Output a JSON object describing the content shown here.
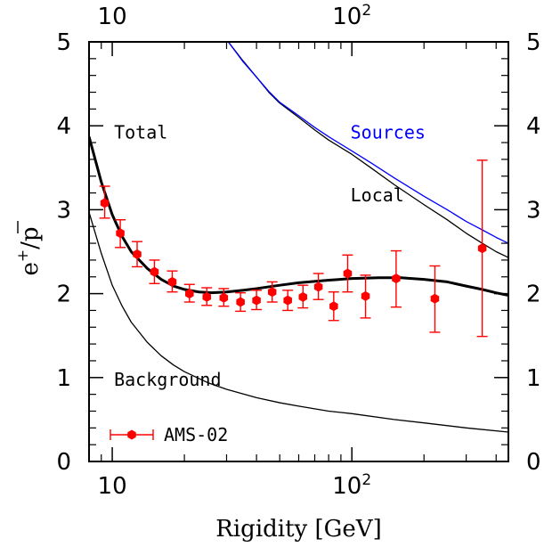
{
  "chart_data": {
    "type": "scatter",
    "xscale": "log",
    "xlim": [
      8,
      450
    ],
    "ylim": [
      0,
      5
    ],
    "xlabel": "Rigidity [GeV]",
    "ylabel": {
      "base": "e",
      "sup": "+",
      "slash": "/",
      "over": "p"
    },
    "x_major_ticks": [
      {
        "value": 10,
        "base": "10",
        "exp": ""
      },
      {
        "value": 100,
        "base": "10",
        "exp": "2"
      }
    ],
    "y_ticks": [
      0,
      1,
      2,
      3,
      4,
      5
    ],
    "grid": false,
    "series": [
      {
        "name": "AMS-02",
        "kind": "points",
        "color": "#ff0000",
        "points": [
          {
            "x": 9.3,
            "y": 3.08,
            "ylo": 2.9,
            "yhi": 3.28
          },
          {
            "x": 10.8,
            "y": 2.72,
            "ylo": 2.55,
            "yhi": 2.88
          },
          {
            "x": 12.7,
            "y": 2.47,
            "ylo": 2.32,
            "yhi": 2.62
          },
          {
            "x": 15.0,
            "y": 2.26,
            "ylo": 2.12,
            "yhi": 2.4
          },
          {
            "x": 17.8,
            "y": 2.14,
            "ylo": 2.02,
            "yhi": 2.27
          },
          {
            "x": 21.0,
            "y": 2.0,
            "ylo": 1.9,
            "yhi": 2.11
          },
          {
            "x": 24.8,
            "y": 1.96,
            "ylo": 1.86,
            "yhi": 2.07
          },
          {
            "x": 29.2,
            "y": 1.95,
            "ylo": 1.85,
            "yhi": 2.06
          },
          {
            "x": 34.3,
            "y": 1.9,
            "ylo": 1.79,
            "yhi": 2.01
          },
          {
            "x": 40.0,
            "y": 1.92,
            "ylo": 1.81,
            "yhi": 2.04
          },
          {
            "x": 46.5,
            "y": 2.02,
            "ylo": 1.9,
            "yhi": 2.14
          },
          {
            "x": 54.0,
            "y": 1.92,
            "ylo": 1.8,
            "yhi": 2.04
          },
          {
            "x": 62.5,
            "y": 1.96,
            "ylo": 1.83,
            "yhi": 2.1
          },
          {
            "x": 72.5,
            "y": 2.08,
            "ylo": 1.93,
            "yhi": 2.24
          },
          {
            "x": 84.0,
            "y": 1.85,
            "ylo": 1.68,
            "yhi": 2.02
          },
          {
            "x": 96.0,
            "y": 2.24,
            "ylo": 2.02,
            "yhi": 2.46
          },
          {
            "x": 114,
            "y": 1.97,
            "ylo": 1.71,
            "yhi": 2.22
          },
          {
            "x": 153,
            "y": 2.18,
            "ylo": 1.84,
            "yhi": 2.51
          },
          {
            "x": 222,
            "y": 1.94,
            "ylo": 1.54,
            "yhi": 2.33
          },
          {
            "x": 350,
            "y": 2.54,
            "ylo": 1.49,
            "yhi": 3.59
          }
        ]
      },
      {
        "name": "Total",
        "kind": "line",
        "color": "#000000",
        "width": 3,
        "points": [
          [
            8,
            3.87
          ],
          [
            9,
            3.33
          ],
          [
            10,
            2.94
          ],
          [
            11,
            2.68
          ],
          [
            12,
            2.5
          ],
          [
            14,
            2.3
          ],
          [
            16,
            2.17
          ],
          [
            18,
            2.09
          ],
          [
            20,
            2.05
          ],
          [
            23,
            2.02
          ],
          [
            26,
            2.01
          ],
          [
            30,
            2.02
          ],
          [
            35,
            2.04
          ],
          [
            40,
            2.06
          ],
          [
            50,
            2.1
          ],
          [
            60,
            2.13
          ],
          [
            80,
            2.16
          ],
          [
            100,
            2.18
          ],
          [
            130,
            2.19
          ],
          [
            160,
            2.19
          ],
          [
            200,
            2.17
          ],
          [
            250,
            2.14
          ],
          [
            300,
            2.09
          ],
          [
            350,
            2.05
          ],
          [
            400,
            2.01
          ],
          [
            450,
            1.98
          ]
        ]
      },
      {
        "name": "Background",
        "kind": "line",
        "color": "#000000",
        "width": 1.3,
        "points": [
          [
            8,
            2.97
          ],
          [
            9,
            2.48
          ],
          [
            10,
            2.1
          ],
          [
            11,
            1.85
          ],
          [
            12,
            1.66
          ],
          [
            14,
            1.42
          ],
          [
            16,
            1.26
          ],
          [
            18,
            1.15
          ],
          [
            20,
            1.07
          ],
          [
            25,
            0.94
          ],
          [
            30,
            0.86
          ],
          [
            40,
            0.76
          ],
          [
            50,
            0.7
          ],
          [
            60,
            0.66
          ],
          [
            80,
            0.6
          ],
          [
            100,
            0.57
          ],
          [
            150,
            0.5
          ],
          [
            200,
            0.46
          ],
          [
            300,
            0.4
          ],
          [
            450,
            0.35
          ]
        ]
      },
      {
        "name": "Local",
        "kind": "line",
        "color": "#000000",
        "width": 1.3,
        "points": [
          [
            30.5,
            5.0
          ],
          [
            35,
            4.78
          ],
          [
            40,
            4.58
          ],
          [
            45,
            4.4
          ],
          [
            50,
            4.27
          ],
          [
            60,
            4.1
          ],
          [
            70,
            3.95
          ],
          [
            80,
            3.83
          ],
          [
            100,
            3.66
          ],
          [
            120,
            3.5
          ],
          [
            150,
            3.3
          ],
          [
            200,
            3.06
          ],
          [
            250,
            2.88
          ],
          [
            300,
            2.72
          ],
          [
            350,
            2.6
          ],
          [
            400,
            2.5
          ],
          [
            450,
            2.43
          ]
        ]
      },
      {
        "name": "Sources",
        "kind": "line",
        "color": "#0000ff",
        "width": 1.3,
        "points": [
          [
            30.5,
            5.0
          ],
          [
            35,
            4.77
          ],
          [
            40,
            4.58
          ],
          [
            45,
            4.41
          ],
          [
            50,
            4.28
          ],
          [
            60,
            4.12
          ],
          [
            70,
            3.98
          ],
          [
            80,
            3.87
          ],
          [
            100,
            3.7
          ],
          [
            120,
            3.56
          ],
          [
            150,
            3.38
          ],
          [
            200,
            3.16
          ],
          [
            250,
            3.0
          ],
          [
            300,
            2.86
          ],
          [
            350,
            2.76
          ],
          [
            400,
            2.67
          ],
          [
            450,
            2.6
          ]
        ]
      }
    ],
    "annotations": [
      {
        "text": "Total",
        "x": 10.0,
        "y": 3.85,
        "color": "#000000"
      },
      {
        "text": "Sources",
        "x": 97,
        "y": 3.85,
        "color": "#0000ff"
      },
      {
        "text": "Local",
        "x": 97,
        "y": 3.1,
        "color": "#000000"
      },
      {
        "text": "Background",
        "x": 10.0,
        "y": 0.9,
        "color": "#000000"
      }
    ],
    "legend": {
      "placement": "bottom-left",
      "label": "AMS-02",
      "color": "#ff0000"
    }
  }
}
